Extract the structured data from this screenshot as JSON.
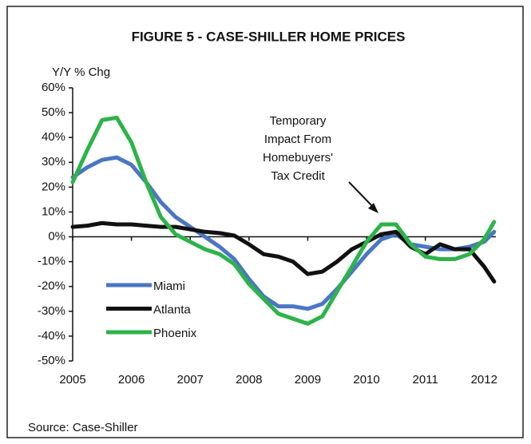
{
  "chart_data": {
    "type": "line",
    "title": "FIGURE 5 - CASE-SHILLER HOME PRICES",
    "y_label": "Y/Y % Chg",
    "source": "Source: Case-Shiller",
    "annotation": [
      "Temporary",
      "Impact From",
      "Homebuyers'",
      "Tax Credit"
    ],
    "x": [
      2005,
      2005.25,
      2005.5,
      2005.75,
      2006,
      2006.25,
      2006.5,
      2006.75,
      2007,
      2007.25,
      2007.5,
      2007.75,
      2008,
      2008.25,
      2008.5,
      2008.75,
      2009,
      2009.25,
      2009.5,
      2009.75,
      2010,
      2010.25,
      2010.5,
      2010.75,
      2011,
      2011.25,
      2011.5,
      2011.75,
      2012,
      2012.17
    ],
    "series": [
      {
        "name": "Miami",
        "color": "#4a76c4",
        "values": [
          24,
          28,
          31,
          32,
          29,
          22,
          14,
          8,
          4,
          0,
          -4,
          -9,
          -17,
          -24,
          -28,
          -28,
          -29,
          -27,
          -21,
          -14,
          -7,
          -1,
          1,
          -3,
          -4,
          -5,
          -5,
          -4,
          -2,
          2
        ]
      },
      {
        "name": "Atlanta",
        "color": "#111111",
        "values": [
          4,
          4.5,
          5.5,
          5,
          5,
          4.5,
          4,
          4,
          3,
          2,
          1.5,
          0.5,
          -3,
          -7,
          -8,
          -10,
          -15,
          -14,
          -10,
          -5,
          -2,
          1,
          2,
          -4,
          -7,
          -3,
          -5,
          -5,
          -12,
          -18
        ]
      },
      {
        "name": "Phoenix",
        "color": "#2db34a",
        "values": [
          22,
          35,
          47,
          48,
          38,
          22,
          8,
          1,
          -2,
          -5,
          -7,
          -11,
          -19,
          -25,
          -31,
          -33,
          -35,
          -32,
          -22,
          -12,
          -2,
          5,
          5,
          -3,
          -8,
          -9,
          -9,
          -7,
          -1,
          6
        ]
      }
    ],
    "xlim": [
      2005,
      2012.2
    ],
    "xticks": [
      2005,
      2006,
      2007,
      2008,
      2009,
      2010,
      2011,
      2012
    ],
    "ylim": [
      -50,
      60
    ],
    "yticks": [
      {
        "value": 60,
        "label": "60%"
      },
      {
        "value": 50,
        "label": "50%"
      },
      {
        "value": 40,
        "label": "40%"
      },
      {
        "value": 30,
        "label": "30%"
      },
      {
        "value": 20,
        "label": "20%"
      },
      {
        "value": 10,
        "label": "10%"
      },
      {
        "value": 0,
        "label": "0%"
      },
      {
        "value": -10,
        "label": "-10%"
      },
      {
        "value": -20,
        "label": "-20%"
      },
      {
        "value": -30,
        "label": "-30%"
      },
      {
        "value": -40,
        "label": "-40%"
      },
      {
        "value": -50,
        "label": "-50%"
      }
    ],
    "grid": false
  }
}
